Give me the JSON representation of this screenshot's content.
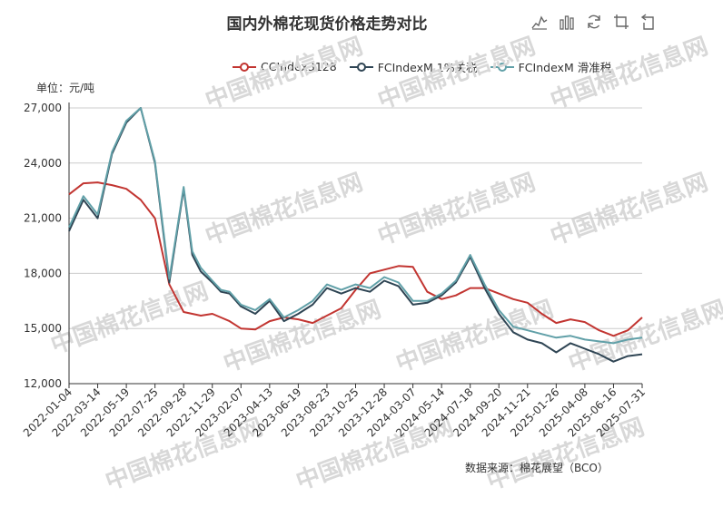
{
  "title": "国内外棉花现货价格走势对比",
  "unit_label": "单位：元/吨",
  "source_label": "数据来源：棉花展望（BCO）",
  "watermark": {
    "text": "中国棉花信息网"
  },
  "toolbox": [
    {
      "name": "line-chart-icon"
    },
    {
      "name": "bar-chart-icon"
    },
    {
      "name": "refresh-icon"
    },
    {
      "name": "data-zoom-icon"
    },
    {
      "name": "restore-icon"
    }
  ],
  "colors": {
    "grid": "#cccccc",
    "axis": "#333333"
  },
  "chart_data": {
    "type": "line",
    "ylim": [
      12000,
      27000
    ],
    "y_ticks": [
      12000,
      15000,
      18000,
      21000,
      24000,
      27000
    ],
    "y_tick_labels": [
      "12,000",
      "15,000",
      "18,000",
      "21,000",
      "24,000",
      "27,000"
    ],
    "x_tick_labels": [
      "2022-01-04",
      "2022-03-14",
      "2022-05-19",
      "2022-07-25",
      "2022-09-28",
      "2022-11-29",
      "2023-02-07",
      "2023-04-13",
      "2023-06-19",
      "2023-08-23",
      "2023-10-25",
      "2023-12-28",
      "2024-03-07",
      "2024-05-14",
      "2024-07-18",
      "2024-09-20",
      "2024-11-21",
      "2025-01-26",
      "2025-04-08",
      "2025-06-16",
      "2025-07-31"
    ],
    "x": [
      0,
      0.5,
      1,
      1.5,
      2,
      2.5,
      3,
      3.5,
      4,
      4.3,
      4.6,
      5,
      5.3,
      5.6,
      6,
      6.5,
      7,
      7.5,
      8,
      8.5,
      9,
      9.5,
      10,
      10.5,
      11,
      11.5,
      12,
      12.5,
      13,
      13.5,
      14,
      14.5,
      15,
      15.5,
      16,
      16.5,
      17,
      17.5,
      18,
      18.5,
      19,
      19.5,
      20
    ],
    "series": [
      {
        "name": "CCIndex3128",
        "color": "#c23531",
        "values": [
          22300,
          22900,
          22950,
          22800,
          22600,
          22000,
          21000,
          17400,
          15900,
          15800,
          15700,
          15800,
          15600,
          15400,
          15000,
          14950,
          15400,
          15600,
          15500,
          15300,
          15700,
          16100,
          17100,
          18000,
          18200,
          18400,
          18350,
          17000,
          16600,
          16800,
          17200,
          17200,
          16900,
          16600,
          16400,
          15800,
          15300,
          15500,
          15350,
          14900,
          14600,
          14900,
          15600
        ]
      },
      {
        "name": "FCIndexM 1%关税",
        "color": "#2f4554",
        "values": [
          20300,
          22000,
          21000,
          24500,
          26200,
          27000,
          24000,
          17500,
          22600,
          19000,
          18100,
          17500,
          17000,
          16900,
          16200,
          15800,
          16500,
          15400,
          15800,
          16300,
          17200,
          16900,
          17200,
          17000,
          17600,
          17300,
          16300,
          16400,
          16800,
          17500,
          18900,
          17200,
          15800,
          14800,
          14400,
          14200,
          13700,
          14200,
          13900,
          13600,
          13200,
          13500,
          13600
        ]
      },
      {
        "name": "FCIndexM 滑准税",
        "color": "#61a0a8",
        "values": [
          20500,
          22200,
          21200,
          24600,
          26300,
          27000,
          24100,
          17700,
          22700,
          19200,
          18300,
          17600,
          17100,
          17000,
          16300,
          16000,
          16600,
          15600,
          16000,
          16500,
          17400,
          17100,
          17400,
          17200,
          17800,
          17500,
          16500,
          16500,
          16900,
          17600,
          19000,
          17400,
          16000,
          15100,
          14900,
          14700,
          14500,
          14600,
          14400,
          14300,
          14200,
          14400,
          14500
        ]
      }
    ]
  }
}
